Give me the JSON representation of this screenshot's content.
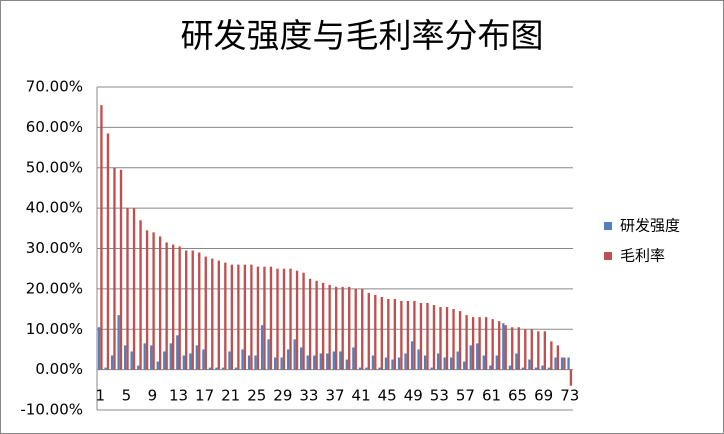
{
  "chart_data": {
    "type": "bar",
    "title": "研发强度与毛利率分布图",
    "categories": [
      1,
      null,
      null,
      null,
      5,
      null,
      null,
      null,
      9,
      null,
      null,
      null,
      13,
      null,
      null,
      null,
      17,
      null,
      null,
      null,
      21,
      null,
      null,
      null,
      25,
      null,
      null,
      null,
      29,
      null,
      null,
      null,
      33,
      null,
      null,
      null,
      37,
      null,
      null,
      null,
      41,
      null,
      null,
      null,
      45,
      null,
      null,
      null,
      49,
      null,
      null,
      null,
      53,
      null,
      null,
      null,
      57,
      null,
      null,
      null,
      61,
      null,
      null,
      null,
      65,
      null,
      null,
      null,
      69,
      null,
      null,
      null,
      73
    ],
    "series": [
      {
        "name": "研发强度",
        "color": "#4f81bd",
        "values": [
          10.5,
          0.5,
          3.5,
          13.5,
          6,
          4.5,
          1,
          6.5,
          6,
          2,
          4.5,
          6.5,
          8.5,
          3.5,
          4,
          6,
          5,
          0.5,
          0.5,
          0.5,
          4.5,
          0.5,
          5,
          3.5,
          3.5,
          11,
          7.5,
          3,
          3,
          5,
          7.5,
          5.5,
          3.5,
          3.5,
          4,
          4,
          4.5,
          4.5,
          2.5,
          5.5,
          0.5,
          0.5,
          3.5,
          0.5,
          3,
          2.5,
          3,
          4,
          7,
          5,
          3.5,
          0.5,
          4,
          3,
          3,
          4.5,
          2,
          6,
          6.5,
          3.5,
          1,
          3.5,
          11.5,
          1,
          4,
          0.5,
          2.5,
          0.5,
          1,
          0.5,
          3,
          3,
          3
        ]
      },
      {
        "name": "毛利率",
        "color": "#c0504d",
        "values": [
          65.5,
          58.5,
          50,
          49.5,
          40,
          40,
          37,
          34.5,
          34,
          33,
          31.5,
          31,
          30.5,
          29.5,
          29.5,
          29,
          28,
          27.5,
          27,
          26.5,
          26,
          26,
          26,
          26,
          25.5,
          25.5,
          25.5,
          25,
          25,
          25,
          24.5,
          24,
          22.5,
          22,
          21.5,
          21,
          20.5,
          20.5,
          20.5,
          20,
          20,
          19,
          18.5,
          18,
          17.5,
          17.5,
          17,
          17,
          17,
          16.5,
          16.5,
          16,
          15.5,
          15.5,
          15,
          14.5,
          13.5,
          13,
          13,
          13,
          12.5,
          12,
          11,
          10.5,
          10.5,
          10,
          10,
          9.5,
          9.5,
          7,
          6,
          3,
          -4
        ]
      }
    ],
    "ylim": [
      -10,
      70
    ],
    "yticks": [
      {
        "value": -10,
        "label": "-10.00%"
      },
      {
        "value": 0,
        "label": "0.00%"
      },
      {
        "value": 10,
        "label": "10.00%"
      },
      {
        "value": 20,
        "label": "20.00%"
      },
      {
        "value": 30,
        "label": "30.00%"
      },
      {
        "value": 40,
        "label": "40.00%"
      },
      {
        "value": 50,
        "label": "50.00%"
      },
      {
        "value": 60,
        "label": "60.00%"
      },
      {
        "value": 70,
        "label": "70.00%"
      }
    ],
    "grid": true,
    "legend": "right"
  }
}
